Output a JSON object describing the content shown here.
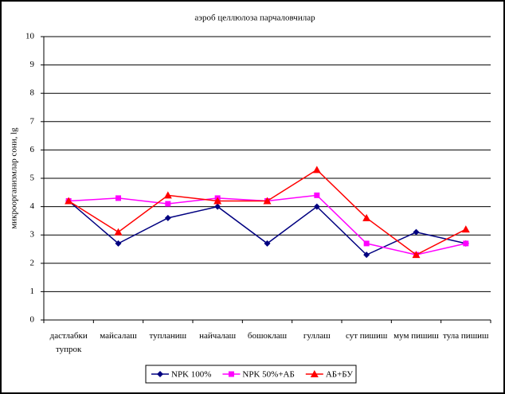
{
  "chart_data": {
    "type": "line",
    "title": "аэроб целлюлоза парчаловчилар",
    "y_label": "микроорганизмлар сони, lg",
    "categories": [
      "дастлабки тупрок",
      "майсалаш",
      "тупланиш",
      "найчалаш",
      "бошоклаш",
      "гуллаш",
      "сут пишиш",
      "мум пишиш",
      "тула пишиш"
    ],
    "series": [
      {
        "name": "NPK 100%",
        "color": "#000080",
        "marker": "diamond",
        "values": [
          4.2,
          2.7,
          3.6,
          4.0,
          2.7,
          4.0,
          2.3,
          3.1,
          2.7
        ]
      },
      {
        "name": "NPK 50%+АБ",
        "color": "#ff00ff",
        "marker": "square",
        "values": [
          4.2,
          4.3,
          4.1,
          4.3,
          4.2,
          4.4,
          2.7,
          2.3,
          2.7
        ]
      },
      {
        "name": "АБ+БУ",
        "color": "#ff0000",
        "marker": "triangle",
        "values": [
          4.2,
          3.1,
          4.4,
          4.2,
          4.2,
          5.3,
          3.6,
          2.3,
          3.2
        ]
      }
    ],
    "ylim": [
      0,
      10
    ],
    "yticks": [
      0,
      1,
      2,
      3,
      4,
      5,
      6,
      7,
      8,
      9,
      10
    ],
    "grid": true,
    "legend": "bottom"
  }
}
